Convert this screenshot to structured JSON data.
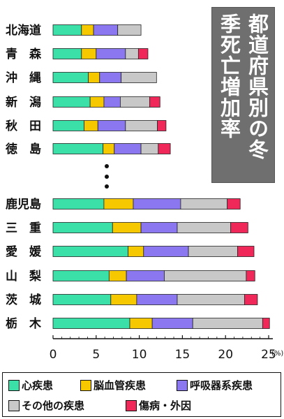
{
  "title": "都道府県別の冬季死亡増加率",
  "colors": {
    "heart": "#3be0a8",
    "cerebro": "#f5c800",
    "resp": "#8b78f0",
    "other": "#c8c8c8",
    "injury": "#f0285a"
  },
  "legend": [
    {
      "key": "heart",
      "label": "心疾患"
    },
    {
      "key": "cerebro",
      "label": "脳血管疾患"
    },
    {
      "key": "resp",
      "label": "呼吸器系疾患"
    },
    {
      "key": "other",
      "label": "その他の疾患"
    },
    {
      "key": "injury",
      "label": "傷病・外因"
    }
  ],
  "chart_data": {
    "type": "bar",
    "orientation": "horizontal",
    "stacked": true,
    "categories": [
      "北海道",
      "青　森",
      "沖　縄",
      "新　潟",
      "秋　田",
      "徳　島",
      "鹿児島",
      "三　重",
      "愛　媛",
      "山　梨",
      "茨　城",
      "栃　木"
    ],
    "gap_marker": "⋮",
    "xlim": [
      0,
      25
    ],
    "xticks": [
      0,
      5,
      10,
      15,
      20,
      25
    ],
    "x_unit": "(%)",
    "series": [
      {
        "name": "心疾患",
        "key": "heart",
        "values": [
          3.3,
          3.3,
          4.1,
          4.3,
          3.6,
          5.8,
          5.9,
          6.9,
          8.7,
          6.5,
          6.7,
          8.9
        ]
      },
      {
        "name": "脳血管疾患",
        "key": "cerebro",
        "values": [
          1.4,
          1.7,
          1.3,
          1.6,
          1.6,
          1.3,
          3.4,
          3.3,
          1.8,
          2.0,
          3.0,
          2.6
        ]
      },
      {
        "name": "呼吸器系疾患",
        "key": "resp",
        "values": [
          2.8,
          3.4,
          2.5,
          1.9,
          3.2,
          3.1,
          5.5,
          4.2,
          5.2,
          4.4,
          4.7,
          4.7
        ]
      },
      {
        "name": "その他の疾患",
        "key": "other",
        "values": [
          2.7,
          1.5,
          4.1,
          3.4,
          3.7,
          2.0,
          5.4,
          6.2,
          5.7,
          9.5,
          7.8,
          8.1
        ]
      },
      {
        "name": "傷病・外因",
        "key": "injury",
        "values": [
          0.0,
          1.1,
          0.0,
          1.2,
          1.0,
          1.4,
          1.5,
          2.0,
          1.9,
          1.0,
          1.5,
          0.8
        ]
      }
    ]
  }
}
